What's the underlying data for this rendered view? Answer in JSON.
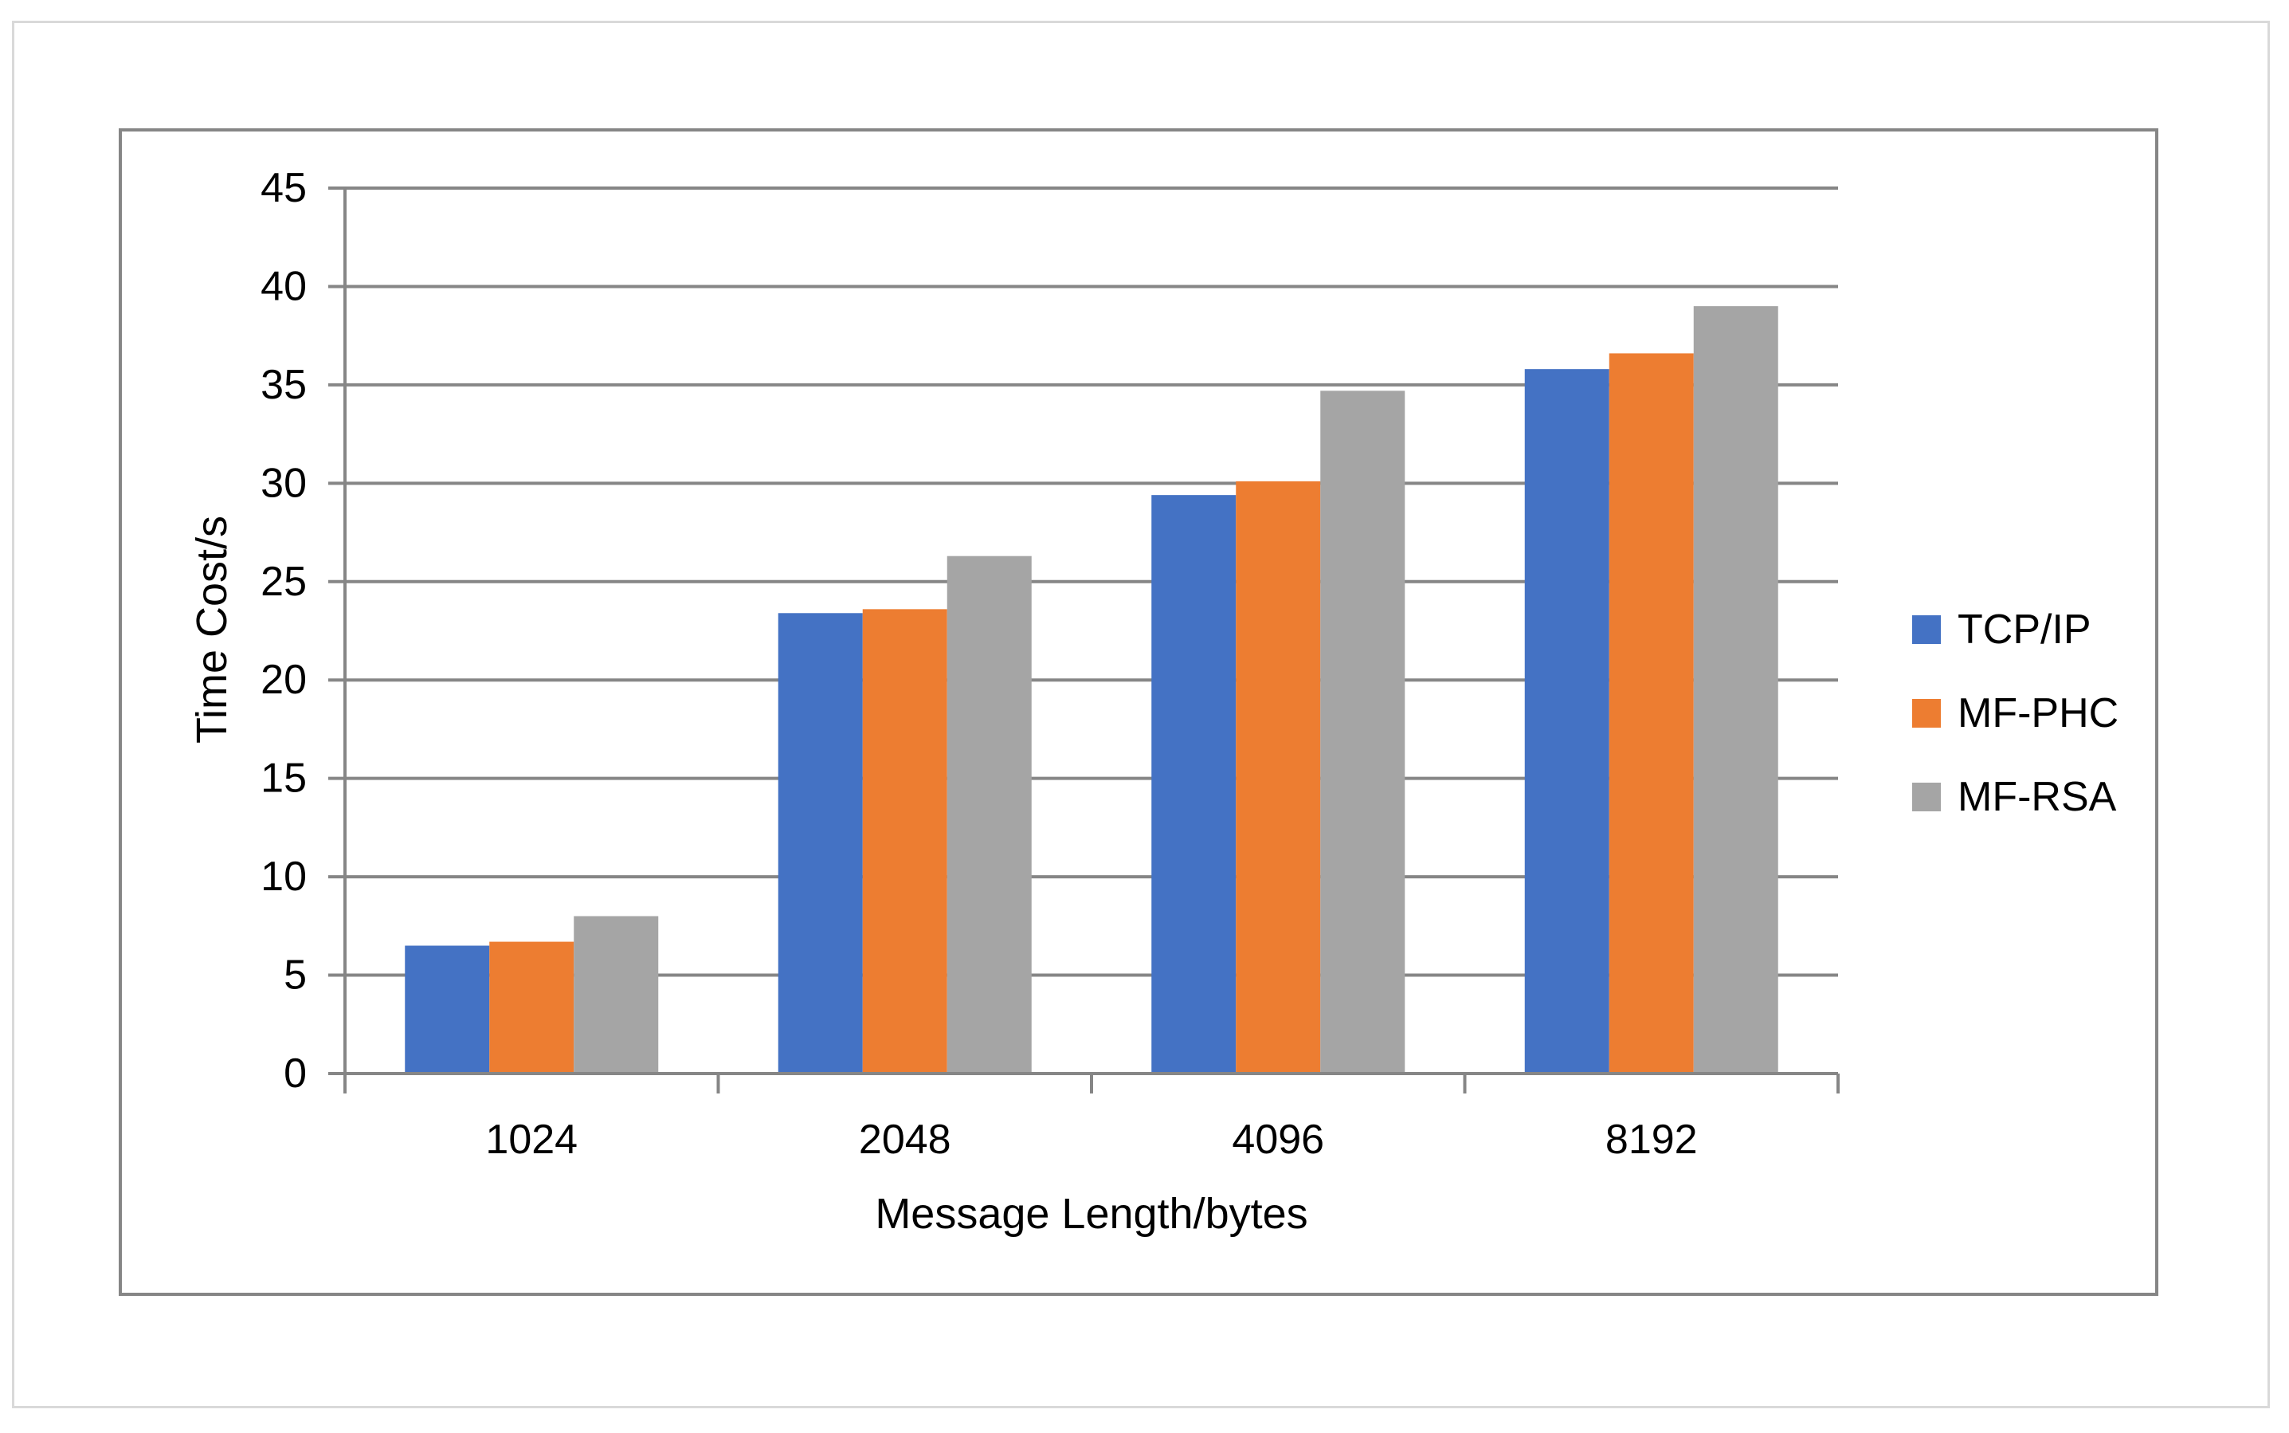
{
  "chart_data": {
    "type": "bar",
    "title": "",
    "categories": [
      "1024",
      "2048",
      "4096",
      "8192"
    ],
    "series": [
      {
        "name": "TCP/IP",
        "color": "#4472C4",
        "values": [
          6.5,
          23.4,
          29.4,
          35.8
        ]
      },
      {
        "name": "MF-PHC",
        "color": "#ED7D31",
        "values": [
          6.7,
          23.6,
          30.1,
          36.6
        ]
      },
      {
        "name": "MF-RSA",
        "color": "#A5A5A5",
        "values": [
          8.0,
          26.3,
          34.7,
          39.0
        ]
      }
    ],
    "xlabel": "Message Length/bytes",
    "ylabel": "Time Cost/s",
    "ylim": [
      0,
      45
    ],
    "ytick_step": 5,
    "yticks": [
      0,
      5,
      10,
      15,
      20,
      25,
      30,
      35,
      40,
      45
    ],
    "grid": true,
    "legend_position": "right",
    "colors": {
      "gridline": "#868686",
      "axis": "#868686",
      "chart_border": "#868686",
      "outer_border": "#D9D9D9",
      "text": "#000000"
    }
  }
}
